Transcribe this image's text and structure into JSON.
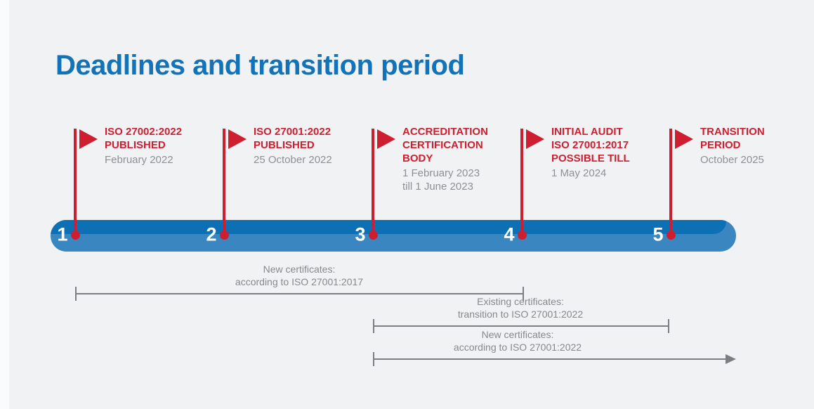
{
  "title": "Deadlines and transition period",
  "colors": {
    "background": "#f1f2f4",
    "stripe": "#fafbfc",
    "title_blue": "#1373b9",
    "bar_dark": "#0e70b4",
    "bar_light": "#3a86c0",
    "red": "#ce1f30",
    "gray_text": "#8d9194",
    "line_gray": "#7b7f83",
    "range_text": "#85898c"
  },
  "timeline": {
    "milestones": [
      {
        "number": "1",
        "heading": "ISO 27002:2022\nPUBLISHED",
        "date": "February 2022"
      },
      {
        "number": "2",
        "heading": "ISO 27001:2022\nPUBLISHED",
        "date": "25 October 2022"
      },
      {
        "number": "3",
        "heading": "ACCREDITATION\nCERTIFICATION\nBODY",
        "date": "1 February 2023\ntill 1 June 2023"
      },
      {
        "number": "4",
        "heading": "INITIAL AUDIT\nISO 27001:2017\nPOSSIBLE TILL",
        "date": "1 May 2024"
      },
      {
        "number": "5",
        "heading": "TRANSITION\nPERIOD",
        "date": "October 2025"
      }
    ]
  },
  "ranges": [
    {
      "label": "New certificates:\naccording to ISO 27001:2017"
    },
    {
      "label": "Existing certificates:\ntransition to ISO 27001:2022"
    },
    {
      "label": "New certificates:\naccording to ISO 27001:2022"
    }
  ]
}
